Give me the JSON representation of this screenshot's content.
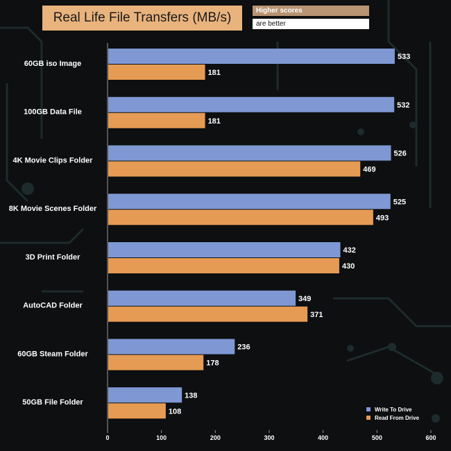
{
  "header": {
    "title": "Real Life File Transfers (MB/s)",
    "note_line1": "Higher scores",
    "note_line2": "are better"
  },
  "chart_data": {
    "type": "bar",
    "orientation": "horizontal",
    "title": "Real Life File Transfers (MB/s)",
    "categories": [
      "60GB iso Image",
      "100GB Data File",
      "4K Movie Clips Folder",
      "8K Movie Scenes Folder",
      "3D Print Folder",
      "AutoCAD Folder",
      "60GB Steam Folder",
      "50GB File Folder"
    ],
    "series": [
      {
        "name": "Write To  Drive",
        "color": "#7f98d4",
        "values": [
          533,
          532,
          526,
          525,
          432,
          349,
          236,
          138
        ]
      },
      {
        "name": "Read From  Drive",
        "color": "#e59b53",
        "values": [
          181,
          181,
          469,
          493,
          430,
          371,
          178,
          108
        ]
      }
    ],
    "xlim": [
      0,
      600
    ],
    "ticks": [
      "0",
      "100",
      "200",
      "300",
      "400",
      "500",
      "600"
    ],
    "xlabel": "",
    "ylabel": "",
    "legend_position": "bottom-right"
  }
}
